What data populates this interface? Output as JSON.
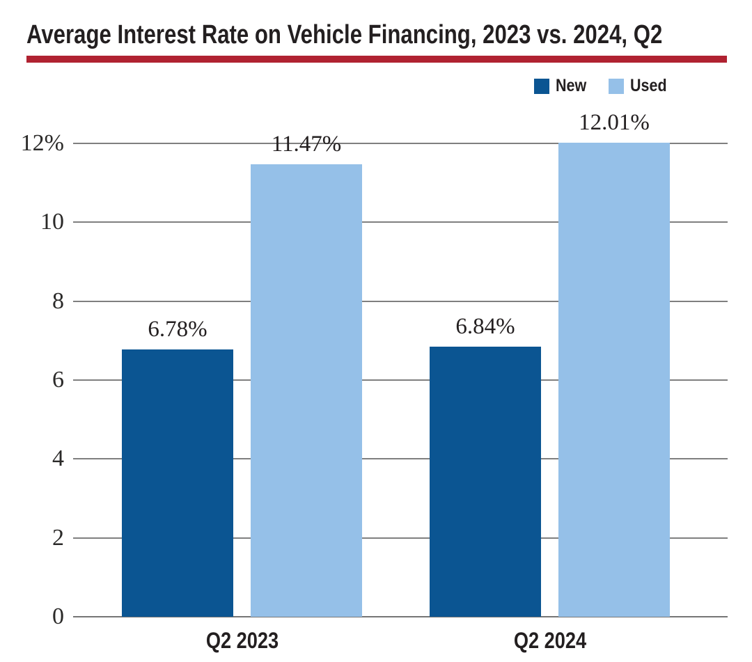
{
  "title": "Average Interest Rate on Vehicle Financing, 2023 vs. 2024, Q2",
  "colors": {
    "title_rule": "#b02231",
    "gridline": "#7f7f7f",
    "baseline": "#757575",
    "text": "#231f20",
    "new_bar": "#0b5592",
    "used_bar": "#95c0e8"
  },
  "chart_data": {
    "type": "bar",
    "title": "Average Interest Rate on Vehicle Financing, 2023 vs. 2024, Q2",
    "categories": [
      "Q2 2023",
      "Q2 2024"
    ],
    "series": [
      {
        "name": "New",
        "color": "#0b5592",
        "values": [
          6.78,
          6.84
        ],
        "labels": [
          "6.78%",
          "6.84%"
        ]
      },
      {
        "name": "Used",
        "color": "#95c0e8",
        "values": [
          11.47,
          12.01
        ],
        "labels": [
          "11.47%",
          "12.01%"
        ]
      }
    ],
    "xlabel": "",
    "ylabel": "",
    "ylim": [
      0,
      12
    ],
    "yticks": [
      {
        "value": 0,
        "label": "0"
      },
      {
        "value": 2,
        "label": "2"
      },
      {
        "value": 4,
        "label": "4"
      },
      {
        "value": 6,
        "label": "6"
      },
      {
        "value": 8,
        "label": "8"
      },
      {
        "value": 10,
        "label": "10"
      },
      {
        "value": 12,
        "label": "12%"
      }
    ],
    "grid": "horizontal",
    "legend_position": "top-right"
  }
}
